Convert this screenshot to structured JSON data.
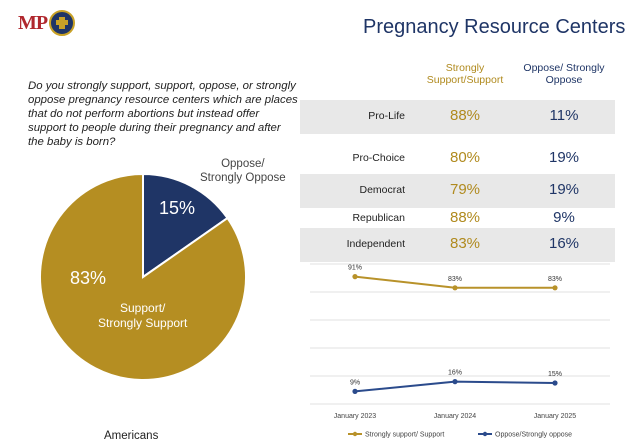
{
  "header": {
    "logo_text": "MP",
    "title": "Pregnancy Resource Centers"
  },
  "question": "Do you strongly support, support, oppose, or strongly oppose pregnancy resource centers which are places that do not perform abortions but instead offer support to people during their pregnancy and after the baby is born?",
  "table": {
    "col_support": "Strongly Support/Support",
    "col_oppose": "Oppose/ Strongly Oppose",
    "rows": [
      {
        "label": "Pro-Life",
        "support": "88%",
        "oppose": "11%"
      },
      {
        "label": "Pro-Choice",
        "support": "80%",
        "oppose": "19%"
      },
      {
        "label": "Democrat",
        "support": "79%",
        "oppose": "19%"
      },
      {
        "label": "Republican",
        "support": "88%",
        "oppose": "9%"
      },
      {
        "label": "Independent",
        "support": "83%",
        "oppose": "16%"
      }
    ]
  },
  "pie": {
    "oppose_label_1": "Oppose/",
    "oppose_label_2": "Strongly Oppose",
    "oppose_pct": "15%",
    "support_pct": "83%",
    "support_label_1": "Support/",
    "support_label_2": "Strongly Support",
    "caption": "Americans"
  },
  "colors": {
    "gold": "#b08a1e",
    "navy": "#1f3566",
    "pie_gold": "#b58e22",
    "pie_navy": "#1f3566",
    "line_gold": "#b8922a",
    "line_navy": "#2b4b8c"
  },
  "chart_data": [
    {
      "type": "pie",
      "values": [
        {
          "label": "Oppose/Strongly Oppose",
          "value": 15
        },
        {
          "label": "Support/Strongly Support",
          "value": 83
        }
      ],
      "title": "",
      "caption": "Americans"
    },
    {
      "type": "line",
      "categories": [
        "January 2023",
        "January 2024",
        "January 2025"
      ],
      "series": [
        {
          "name": "Strongly support/ Support",
          "values": [
            91,
            83,
            83
          ],
          "labels": [
            "91%",
            "83%",
            "83%"
          ]
        },
        {
          "name": "Oppose/Strongly oppose",
          "values": [
            9,
            16,
            15
          ],
          "labels": [
            "9%",
            "16%",
            "15%"
          ]
        }
      ],
      "ylim": [
        0,
        100
      ],
      "grid": true,
      "legend": "bottom"
    }
  ]
}
